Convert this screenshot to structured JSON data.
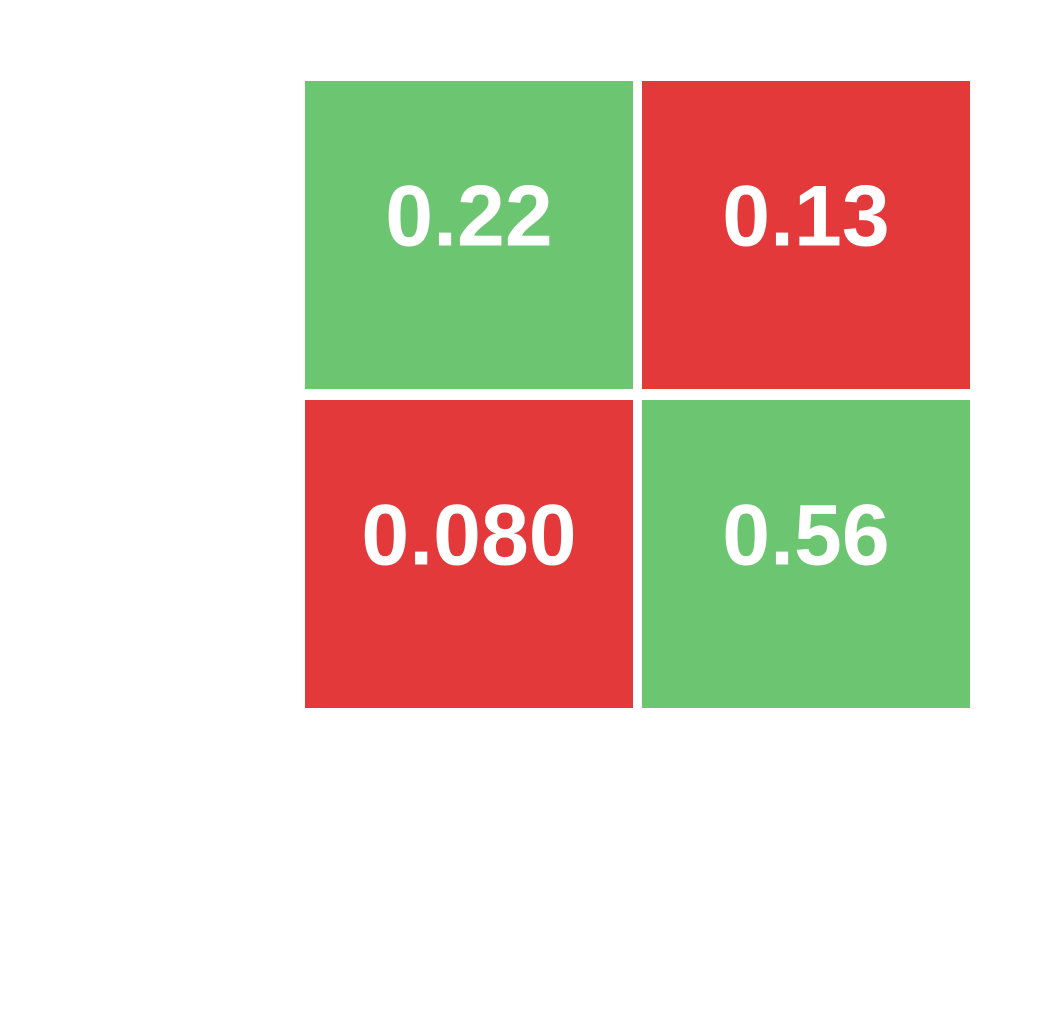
{
  "chart_data": {
    "type": "heatmap",
    "title": "",
    "xlabel": "",
    "ylabel": "",
    "rows": 2,
    "cols": 2,
    "cells": [
      {
        "row": 0,
        "col": 0,
        "value": 0.22,
        "label": "0.22",
        "color": "#6cc570"
      },
      {
        "row": 0,
        "col": 1,
        "value": 0.13,
        "label": "0.13",
        "color": "#e3393a"
      },
      {
        "row": 1,
        "col": 0,
        "value": 0.08,
        "label": "0.080",
        "color": "#e3393a"
      },
      {
        "row": 1,
        "col": 1,
        "value": 0.56,
        "label": "0.56",
        "color": "#6cc570"
      }
    ]
  },
  "colors": {
    "positive": "#6cc570",
    "negative": "#e3393a",
    "label_text": "#ffffff",
    "background": "#ffffff"
  }
}
